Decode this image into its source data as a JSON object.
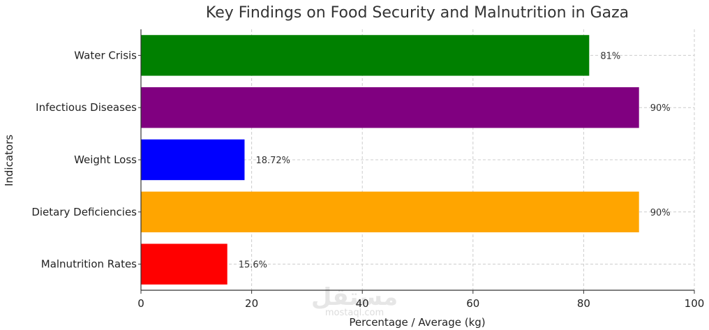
{
  "chart_data": {
    "type": "bar",
    "orientation": "horizontal",
    "title": "Key Findings on Food Security and Malnutrition in Gaza",
    "xlabel": "Percentage / Average (kg)",
    "ylabel": "Indicators",
    "xlim": [
      0,
      100
    ],
    "xticks": [
      0,
      20,
      40,
      60,
      80,
      100
    ],
    "grid": true,
    "categories": [
      "Water Crisis",
      "Infectious Diseases",
      "Weight Loss",
      "Dietary Deficiencies",
      "Malnutrition Rates"
    ],
    "values": [
      81,
      90,
      18.72,
      90,
      15.6
    ],
    "data_labels": [
      "81%",
      "90%",
      "18.72%",
      "90%",
      "15.6%"
    ],
    "colors": [
      "#008000",
      "#800080",
      "#0000ff",
      "#ffa500",
      "#ff0000"
    ]
  },
  "watermark": {
    "main": "مستقل",
    "sub": "mostaql.com"
  }
}
